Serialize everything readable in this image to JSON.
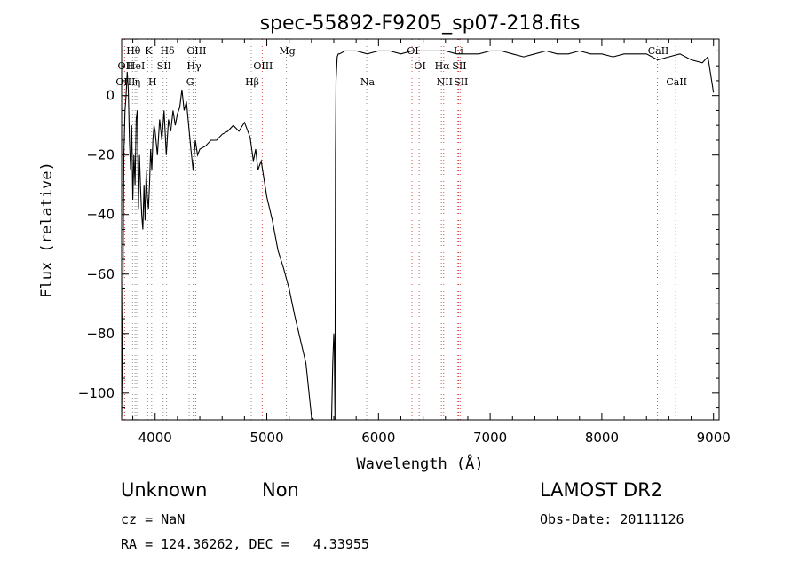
{
  "chart_data": {
    "type": "line",
    "title": "spec-55892-F9205_sp07-218.fits",
    "xlabel": "Wavelength (Å)",
    "ylabel": "Flux (relative)",
    "xlim": [
      3700,
      9050
    ],
    "ylim": [
      -109,
      19
    ],
    "xticks": [
      4000,
      5000,
      6000,
      7000,
      8000,
      9000
    ],
    "yticks": [
      0,
      -20,
      -40,
      -60,
      -80,
      -100
    ],
    "grid": false,
    "series": [
      {
        "x": [
          3700,
          3710,
          3720,
          3730,
          3740,
          3750,
          3760,
          3770,
          3780,
          3790,
          3800,
          3810,
          3820,
          3830,
          3840,
          3850,
          3860,
          3870,
          3880,
          3890,
          3900,
          3910,
          3920,
          3930,
          3940,
          3950,
          3960,
          3970,
          3980,
          3990,
          4000,
          4020,
          4040,
          4060,
          4080,
          4100,
          4120,
          4140,
          4160,
          4180,
          4200,
          4220,
          4240,
          4260,
          4280,
          4300,
          4320,
          4340,
          4360,
          4380,
          4400,
          4450,
          4500,
          4550,
          4600,
          4650,
          4700,
          4750,
          4800,
          4850,
          4880,
          4900,
          4920,
          4950,
          5000,
          5050,
          5100,
          5150,
          5200,
          5250,
          5300,
          5350,
          5400,
          5420,
          5450,
          5500,
          5550,
          5580,
          5590,
          5600,
          5605,
          5610,
          5615,
          5620,
          5630,
          5640,
          5650,
          5700,
          5800,
          5900,
          6000,
          6100,
          6200,
          6300,
          6400,
          6500,
          6600,
          6700,
          6800,
          6900,
          7000,
          7100,
          7200,
          7300,
          7400,
          7500,
          7600,
          7700,
          7800,
          7900,
          8000,
          8100,
          8200,
          8300,
          8400,
          8500,
          8600,
          8700,
          8800,
          8900,
          8950,
          9000
        ],
        "y": [
          -108,
          -70,
          -20,
          -5,
          0,
          8,
          2,
          -15,
          -25,
          -10,
          -35,
          -20,
          -30,
          -8,
          -5,
          -38,
          -20,
          -32,
          -40,
          -45,
          -30,
          -42,
          -25,
          -34,
          -38,
          -30,
          -18,
          -25,
          -15,
          -10,
          -12,
          -20,
          -8,
          -15,
          -5,
          -20,
          -8,
          -12,
          -5,
          -10,
          -6,
          -4,
          2,
          -5,
          -2,
          -10,
          -18,
          -25,
          -15,
          -20,
          -18,
          -17,
          -15,
          -15,
          -13,
          -12,
          -10,
          -12,
          -9,
          -14,
          -22,
          -18,
          -25,
          -22,
          -34,
          -42,
          -52,
          -58,
          -65,
          -74,
          -82,
          -90,
          -108,
          -109,
          -109,
          -109,
          -109,
          -109,
          -90,
          -80,
          -85,
          -109,
          -20,
          5,
          13,
          14,
          14,
          15,
          15,
          14,
          15,
          15,
          14,
          15,
          15,
          15,
          15,
          14,
          14,
          14,
          15,
          15,
          14,
          13,
          14,
          15,
          14,
          14,
          15,
          14,
          14,
          13,
          14,
          14,
          14,
          12,
          13,
          14,
          12,
          11,
          13,
          1
        ]
      }
    ],
    "line_markers": [
      {
        "label": "OII",
        "wavelength": 3727,
        "color": "#e05050",
        "row": 1
      },
      {
        "label": "OIII",
        "wavelength": 3727,
        "color": "#e05050",
        "row": 2
      },
      {
        "label": "Hθ",
        "wavelength": 3798,
        "color": "#909090",
        "row": 0
      },
      {
        "label": "HeI",
        "wavelength": 3820,
        "color": "#909090",
        "row": 1
      },
      {
        "label": "η",
        "wavelength": 3835,
        "color": "#909090",
        "row": 2
      },
      {
        "label": "K",
        "wavelength": 3934,
        "color": "#909090",
        "row": 0
      },
      {
        "label": "H",
        "wavelength": 3969,
        "color": "#909090",
        "row": 2
      },
      {
        "label": "SII",
        "wavelength": 4072,
        "color": "#909090",
        "row": 1
      },
      {
        "label": "Hδ",
        "wavelength": 4102,
        "color": "#909090",
        "row": 0
      },
      {
        "label": "OIII",
        "wavelength": 4363,
        "color": "#e05050",
        "row": 0
      },
      {
        "label": "Hγ",
        "wavelength": 4340,
        "color": "#909090",
        "row": 1
      },
      {
        "label": "G",
        "wavelength": 4305,
        "color": "#909090",
        "row": 2
      },
      {
        "label": "Hβ",
        "wavelength": 4861,
        "color": "#909090",
        "row": 2
      },
      {
        "label": "OIII",
        "wavelength": 4959,
        "color": "#e05050",
        "row": 1
      },
      {
        "label": "Mg",
        "wavelength": 5175,
        "color": "#909090",
        "row": 0
      },
      {
        "label": "Na",
        "wavelength": 5894,
        "color": "#909090",
        "row": 2
      },
      {
        "label": "OI",
        "wavelength": 6300,
        "color": "#e05050",
        "row": 0
      },
      {
        "label": "OI",
        "wavelength": 6364,
        "color": "#e05050",
        "row": 1
      },
      {
        "label": "Hα",
        "wavelength": 6563,
        "color": "#e05050",
        "row": 1
      },
      {
        "label": "NII",
        "wavelength": 6584,
        "color": "#e05050",
        "row": 2
      },
      {
        "label": "Li",
        "wavelength": 6708,
        "color": "#909090",
        "row": 0
      },
      {
        "label": "SII",
        "wavelength": 6717,
        "color": "#e05050",
        "row": 1
      },
      {
        "label": "SII",
        "wavelength": 6731,
        "color": "#e05050",
        "row": 2
      },
      {
        "label": "CaII",
        "wavelength": 8498,
        "color": "#e05050",
        "row": 0
      },
      {
        "label": "CaII",
        "wavelength": 8662,
        "color": "#e05050",
        "row": 2
      }
    ]
  },
  "info": {
    "class_label": "Unknown",
    "subclass_label": "Non",
    "survey": "LAMOST DR2",
    "cz": "cz = NaN",
    "obs_date": "Obs-Date: 20111126",
    "radec": "RA = 124.36262, DEC =   4.33955"
  }
}
